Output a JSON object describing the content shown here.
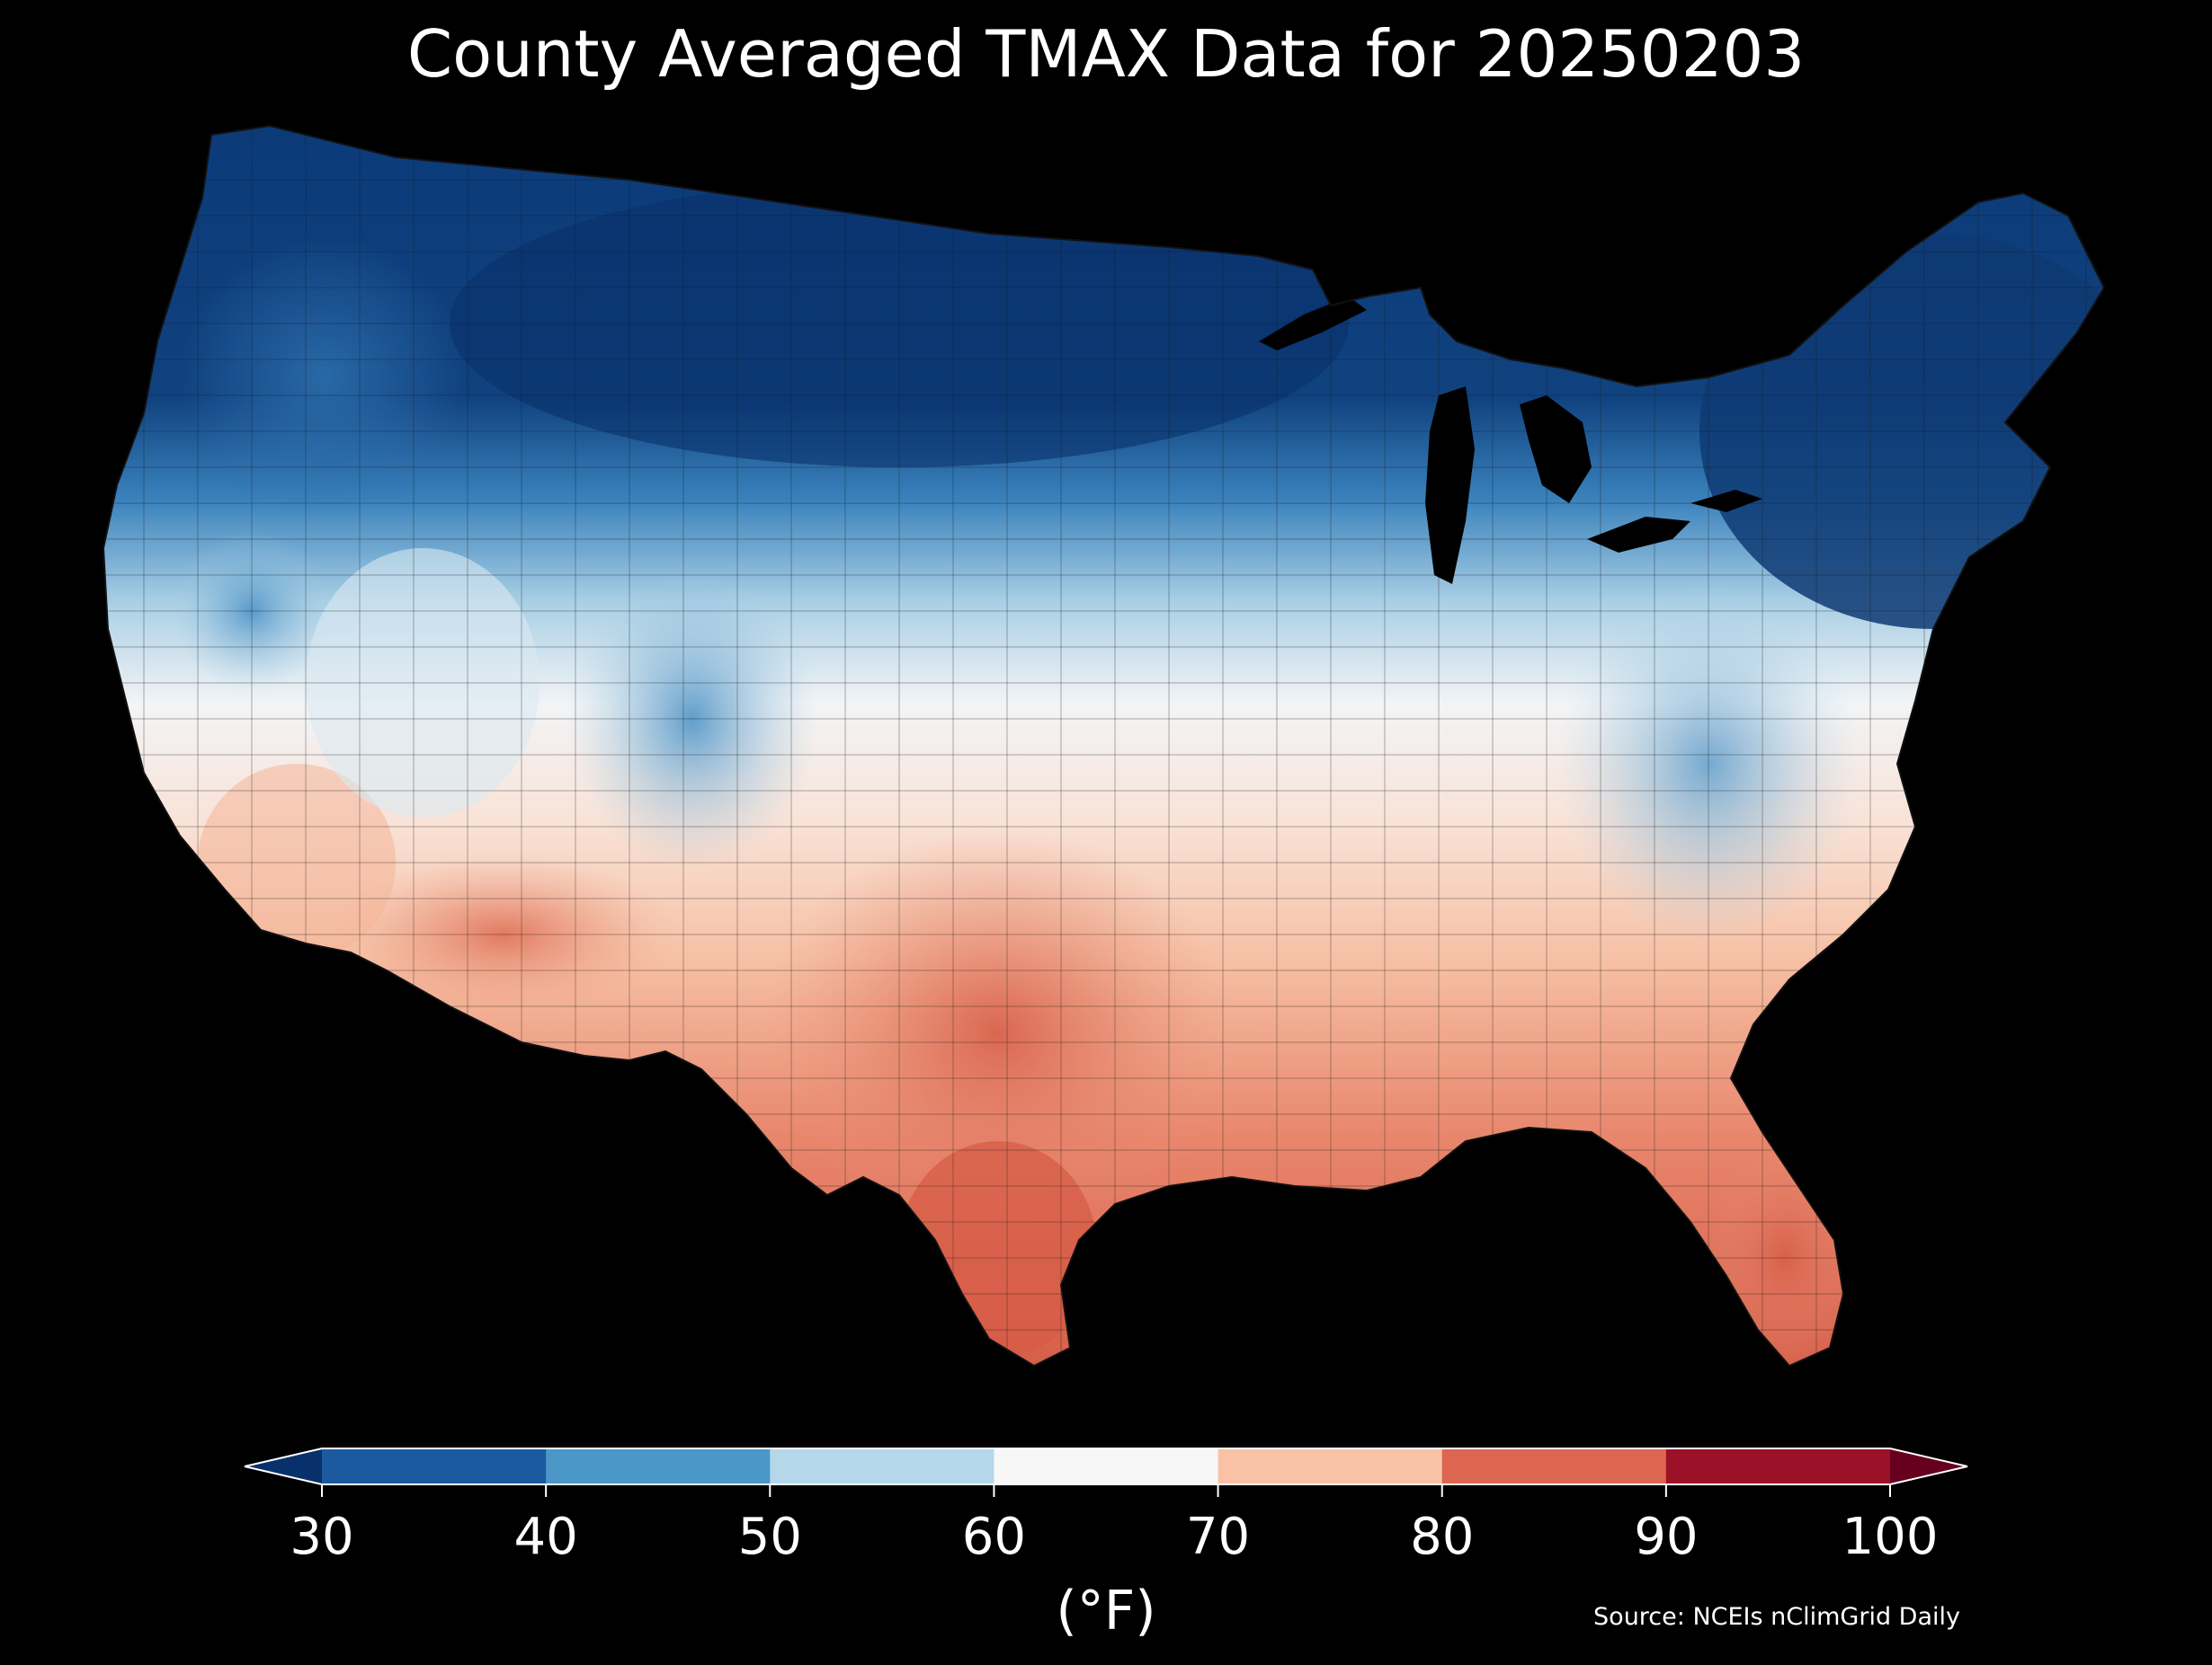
{
  "title": "County Averaged TMAX Data for 20250203",
  "colorbar": {
    "ticks": [
      "30",
      "40",
      "50",
      "60",
      "70",
      "80",
      "90",
      "100"
    ],
    "unit": "(°F)",
    "bins": [
      {
        "from": 30,
        "to": 40,
        "color": "#1c5aa0"
      },
      {
        "from": 40,
        "to": 50,
        "color": "#4a97c8"
      },
      {
        "from": 50,
        "to": 60,
        "color": "#b5d7ea"
      },
      {
        "from": 60,
        "to": 70,
        "color": "#f7f7f7"
      },
      {
        "from": 70,
        "to": 80,
        "color": "#f9c2a6"
      },
      {
        "from": 80,
        "to": 90,
        "color": "#dc6650"
      },
      {
        "from": 90,
        "to": 100,
        "color": "#9b1128"
      }
    ],
    "under_color": "#08306b",
    "over_color": "#67001f",
    "extend": "both"
  },
  "source": "Source: NCEIs nClimGrid Daily",
  "map": {
    "region": "Contiguous United States",
    "units": "county",
    "variable": "TMAX",
    "background": "#000000"
  }
}
